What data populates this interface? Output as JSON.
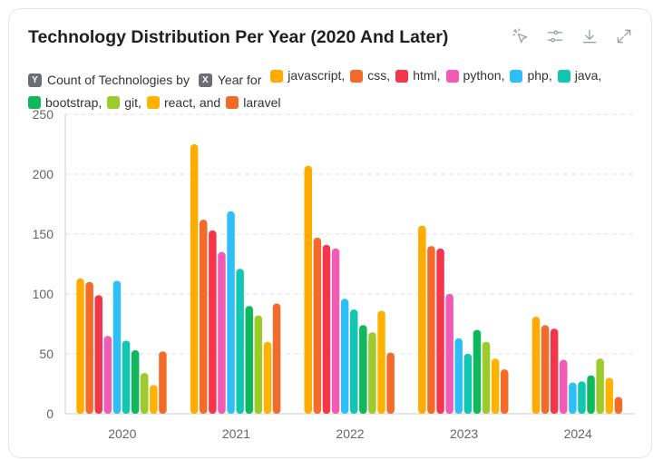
{
  "header": {
    "title": "Technology Distribution Per Year (2020 And Later)",
    "toolbar": [
      {
        "name": "select-icon"
      },
      {
        "name": "settings-sliders-icon"
      },
      {
        "name": "download-icon"
      },
      {
        "name": "expand-icon"
      }
    ]
  },
  "legend": {
    "y_badge": "Y",
    "y_text": "Count of Technologies by",
    "x_badge": "X",
    "x_text": "Year for",
    "entries": [
      {
        "label": "javascript,",
        "color": "#FFAB00"
      },
      {
        "label": "css,",
        "color": "#F26B2A"
      },
      {
        "label": "html,",
        "color": "#F4364C"
      },
      {
        "label": "python,",
        "color": "#F15BB5"
      },
      {
        "label": "php,",
        "color": "#2EBFF9"
      },
      {
        "label": "java,",
        "color": "#12C7B1"
      },
      {
        "label": "bootstrap,",
        "color": "#0FB85C"
      },
      {
        "label": "git,",
        "color": "#9CCB2B"
      },
      {
        "label": "react, and",
        "color": "#FFB300"
      },
      {
        "label": "laravel",
        "color": "#F26B2A"
      }
    ]
  },
  "chart_data": {
    "type": "bar",
    "categories": [
      "2020",
      "2021",
      "2022",
      "2023",
      "2024"
    ],
    "ylim": [
      0,
      250
    ],
    "yticks": [
      0,
      50,
      100,
      150,
      200,
      250
    ],
    "grid": true,
    "series": [
      {
        "name": "javascript",
        "color": "#FFAB00",
        "values": [
          113,
          225,
          207,
          157,
          81
        ]
      },
      {
        "name": "css",
        "color": "#F26B2A",
        "values": [
          110,
          162,
          147,
          140,
          74
        ]
      },
      {
        "name": "html",
        "color": "#F4364C",
        "values": [
          99,
          153,
          141,
          138,
          71
        ]
      },
      {
        "name": "python",
        "color": "#F15BB5",
        "values": [
          65,
          135,
          138,
          100,
          45
        ]
      },
      {
        "name": "php",
        "color": "#2EBFF9",
        "values": [
          111,
          169,
          96,
          63,
          26
        ]
      },
      {
        "name": "java",
        "color": "#12C7B1",
        "values": [
          61,
          121,
          87,
          50,
          27
        ]
      },
      {
        "name": "bootstrap",
        "color": "#0FB85C",
        "values": [
          53,
          90,
          74,
          70,
          32
        ]
      },
      {
        "name": "git",
        "color": "#9CCB2B",
        "values": [
          34,
          82,
          68,
          60,
          46
        ]
      },
      {
        "name": "react",
        "color": "#FFB300",
        "values": [
          24,
          60,
          86,
          46,
          30
        ]
      },
      {
        "name": "laravel",
        "color": "#F26B2A",
        "values": [
          52,
          92,
          51,
          37,
          14
        ]
      }
    ]
  }
}
